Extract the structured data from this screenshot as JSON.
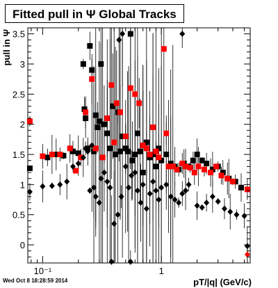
{
  "title": "Fitted pull in Ψ   Global Tracks",
  "footer": "Wed Oct  8 18:28:59 2014",
  "chart_data": {
    "type": "scatter",
    "title": "Fitted pull in Ψ   Global Tracks",
    "xlabel": "pT/|q| (GeV/c)",
    "ylabel": "pull in Ψ",
    "xscale": "log",
    "xlim": [
      0.075,
      5.6
    ],
    "ylim": [
      -0.3,
      3.6
    ],
    "x_ticks": [
      {
        "v": 0.1,
        "label": "10⁻¹"
      },
      {
        "v": 1,
        "label": "1"
      }
    ],
    "y_ticks": [
      0,
      0.5,
      1,
      1.5,
      2,
      2.5,
      3,
      3.5
    ],
    "colors": {
      "black_square": "#000000",
      "red_square": "#ff0000",
      "black_diamond": "#000000",
      "red_diamond": "#ff0000"
    },
    "series": [
      {
        "marker": "square",
        "color": "#000000",
        "points": [
          [
            0.078,
            1.27
          ],
          [
            0.11,
            1.45
          ],
          [
            0.13,
            1.5
          ],
          [
            0.15,
            1.48
          ],
          [
            0.18,
            1.55
          ],
          [
            0.2,
            1.52
          ],
          [
            0.22,
            3.0
          ],
          [
            0.225,
            2.25
          ],
          [
            0.23,
            2.1
          ],
          [
            0.24,
            1.6
          ],
          [
            0.25,
            3.3
          ],
          [
            0.26,
            2.9
          ],
          [
            0.27,
            1.55
          ],
          [
            0.28,
            2.15
          ],
          [
            0.29,
            1.95
          ],
          [
            0.3,
            2.05
          ],
          [
            0.31,
            3.0
          ],
          [
            0.33,
            2.0
          ],
          [
            0.35,
            1.85
          ],
          [
            0.37,
            1.6
          ],
          [
            0.39,
            2.3
          ],
          [
            0.41,
            1.5
          ],
          [
            0.43,
            2.2
          ],
          [
            0.45,
            1.55
          ],
          [
            0.47,
            1.8
          ],
          [
            0.5,
            1.6
          ],
          [
            0.52,
            1.55
          ],
          [
            0.55,
            3.5
          ],
          [
            0.57,
            1.4
          ],
          [
            0.6,
            1.5
          ],
          [
            0.63,
            1.85
          ],
          [
            0.66,
            1.55
          ],
          [
            0.7,
            1.2
          ],
          [
            0.75,
            1.7
          ],
          [
            0.8,
            1.45
          ],
          [
            0.85,
            1.5
          ],
          [
            0.9,
            1.3
          ],
          [
            0.95,
            1.6
          ],
          [
            1.0,
            1.4
          ],
          [
            1.1,
            1.5
          ],
          [
            1.2,
            1.35
          ],
          [
            1.3,
            1.3
          ],
          [
            1.4,
            1.25
          ],
          [
            1.55,
            1.35
          ],
          [
            1.7,
            1.3
          ],
          [
            1.85,
            1.4
          ],
          [
            2.0,
            1.5
          ],
          [
            2.2,
            1.4
          ],
          [
            2.4,
            1.35
          ],
          [
            2.7,
            1.25
          ],
          [
            3.0,
            1.3
          ],
          [
            3.3,
            1.2
          ],
          [
            3.7,
            1.1
          ],
          [
            4.2,
            1.05
          ],
          [
            4.7,
            0.95
          ]
        ]
      },
      {
        "marker": "square",
        "color": "#ff0000",
        "points": [
          [
            0.078,
            2.05
          ],
          [
            0.1,
            1.47
          ],
          [
            0.12,
            1.5
          ],
          [
            0.14,
            1.5
          ],
          [
            0.17,
            1.6
          ],
          [
            0.19,
            1.23
          ],
          [
            0.21,
            1.45
          ],
          [
            0.23,
            2.2
          ],
          [
            0.26,
            2.75
          ],
          [
            0.28,
            1.6
          ],
          [
            0.32,
            1.45
          ],
          [
            0.35,
            2.1
          ],
          [
            0.38,
            2.65
          ],
          [
            0.4,
            1.7
          ],
          [
            0.42,
            2.35
          ],
          [
            0.45,
            2.2
          ],
          [
            0.5,
            1.8
          ],
          [
            0.55,
            2.6
          ],
          [
            0.6,
            2.5
          ],
          [
            0.65,
            2.35
          ],
          [
            0.7,
            1.65
          ],
          [
            0.75,
            1.6
          ],
          [
            0.8,
            1.5
          ],
          [
            0.85,
            1.95
          ],
          [
            0.9,
            1.55
          ],
          [
            0.95,
            1.45
          ],
          [
            1.05,
            3.25
          ],
          [
            1.1,
            1.85
          ],
          [
            1.15,
            1.3
          ],
          [
            1.25,
            1.3
          ],
          [
            1.35,
            1.25
          ],
          [
            1.5,
            1.35
          ],
          [
            1.6,
            1.3
          ],
          [
            1.75,
            1.28
          ],
          [
            1.9,
            1.2
          ],
          [
            2.05,
            1.3
          ],
          [
            2.3,
            1.25
          ],
          [
            2.6,
            1.2
          ],
          [
            2.9,
            1.3
          ],
          [
            3.2,
            1.15
          ],
          [
            3.6,
            1.1
          ],
          [
            4.0,
            1.05
          ],
          [
            5.3,
            0.92
          ]
        ]
      },
      {
        "marker": "diamond",
        "color": "#000000",
        "points": [
          [
            0.078,
            0.88
          ],
          [
            0.1,
            0.97
          ],
          [
            0.12,
            0.98
          ],
          [
            0.14,
            1.0
          ],
          [
            0.16,
            1.05
          ],
          [
            0.18,
            1.3
          ],
          [
            0.2,
            1.35
          ],
          [
            0.22,
            1.45
          ],
          [
            0.23,
            1.6
          ],
          [
            0.24,
            1.55
          ],
          [
            0.25,
            0.9
          ],
          [
            0.26,
            1.65
          ],
          [
            0.27,
            0.95
          ],
          [
            0.28,
            0.8
          ],
          [
            0.3,
            0.7
          ],
          [
            0.31,
            1.1
          ],
          [
            0.33,
            1.2
          ],
          [
            0.35,
            1.05
          ],
          [
            0.37,
            0.95
          ],
          [
            0.4,
            0.35
          ],
          [
            0.43,
            0.5
          ],
          [
            0.46,
            0.8
          ],
          [
            0.5,
            1.3
          ],
          [
            0.53,
            0.95
          ],
          [
            0.56,
            1.15
          ],
          [
            0.6,
            1.2
          ],
          [
            0.63,
            0.9
          ],
          [
            0.67,
            0.7
          ],
          [
            0.7,
            1.0
          ],
          [
            0.75,
            0.6
          ],
          [
            0.8,
            0.85
          ],
          [
            0.85,
            1.05
          ],
          [
            0.9,
            0.9
          ],
          [
            0.95,
            0.75
          ],
          [
            1.0,
            0.95
          ],
          [
            1.1,
            1.0
          ],
          [
            1.2,
            0.8
          ],
          [
            1.3,
            0.75
          ],
          [
            1.4,
            0.7
          ],
          [
            1.5,
            0.85
          ],
          [
            1.6,
            0.9
          ],
          [
            1.7,
            1.0
          ],
          [
            2.0,
            0.65
          ],
          [
            2.2,
            0.62
          ],
          [
            2.4,
            0.7
          ],
          [
            2.7,
            0.8
          ],
          [
            3.0,
            0.72
          ],
          [
            3.4,
            0.6
          ],
          [
            3.8,
            0.55
          ],
          [
            4.3,
            0.5
          ],
          [
            5.0,
            0.48
          ],
          [
            5.3,
            -0.02
          ],
          [
            0.47,
            3.5
          ],
          [
            1.5,
            3.5
          ],
          [
            0.55,
            -0.28
          ],
          [
            0.38,
            -0.28
          ],
          [
            0.44,
            3.4
          ]
        ]
      },
      {
        "marker": "diamond",
        "color": "#ff0000",
        "points": [
          [
            5.3,
            -0.16
          ]
        ]
      }
    ]
  }
}
